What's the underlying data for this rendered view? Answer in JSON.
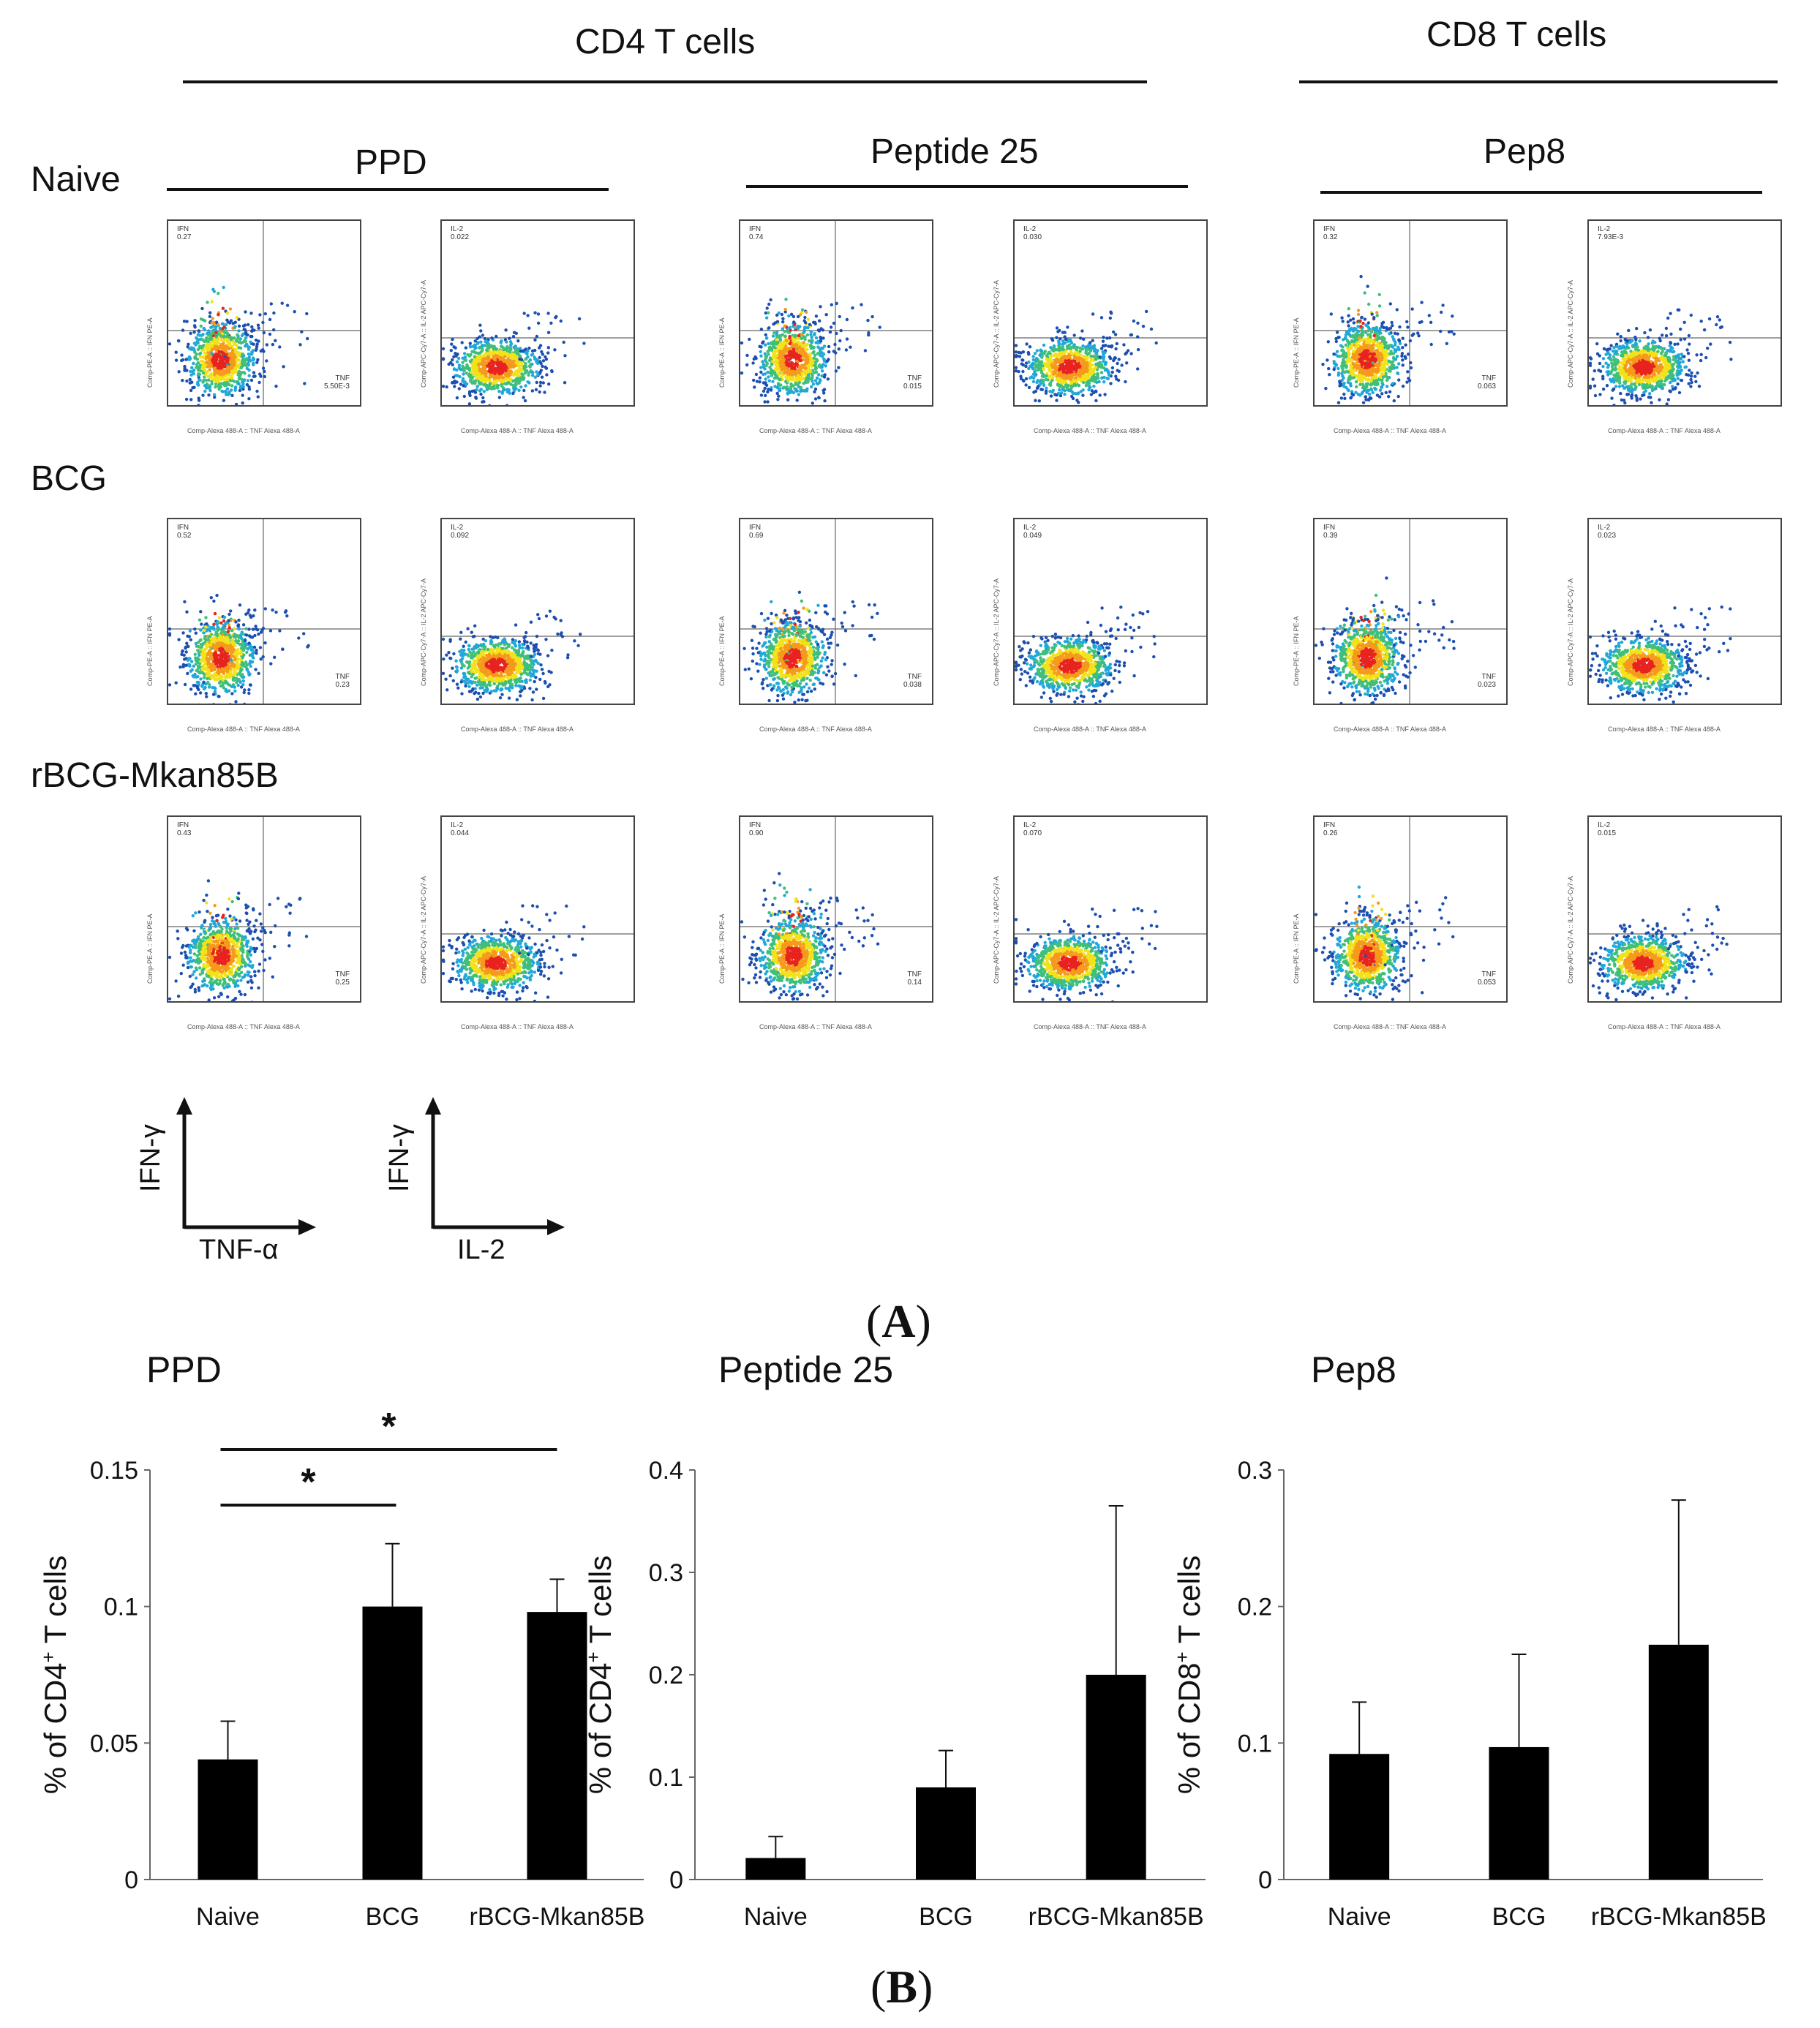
{
  "panel_a": {
    "letter": "A",
    "group_headers": {
      "cd4": "CD4 T cells",
      "cd8": "CD8 T cells"
    },
    "stim_headers": {
      "ppd": "PPD",
      "peptide25": "Peptide 25",
      "pep8": "Pep8"
    },
    "row_labels": [
      "Naive",
      "BCG",
      "rBCG-Mkan85B"
    ],
    "x_axis_text": {
      "tnf": "Comp-Alexa 488-A :: TNF Alexa 488-A",
      "il2": "Comp-Alexa 488-A :: TNF Alexa 488-A"
    },
    "y_axis_text": {
      "tnf": "Comp-PE-A :: IFN PE-A",
      "il2": "Comp-APC-Cy7-A :: IL-2 APC-Cy7-A"
    },
    "gates": {
      "naive": [
        {
          "ul": "IFN",
          "ul_val": "0.27",
          "lr": "TNF",
          "lr_val": "5.50E-3"
        },
        {
          "ul": "IL-2",
          "ul_val": "0.022",
          "lr": "",
          "lr_val": ""
        },
        {
          "ul": "IFN",
          "ul_val": "0.74",
          "lr": "TNF",
          "lr_val": "0.015"
        },
        {
          "ul": "IL-2",
          "ul_val": "0.030",
          "lr": "",
          "lr_val": ""
        },
        {
          "ul": "IFN",
          "ul_val": "0.32",
          "lr": "TNF",
          "lr_val": "0.063"
        },
        {
          "ul": "IL-2",
          "ul_val": "7.93E-3",
          "lr": "",
          "lr_val": ""
        }
      ],
      "bcg": [
        {
          "ul": "IFN",
          "ul_val": "0.52",
          "lr": "TNF",
          "lr_val": "0.23"
        },
        {
          "ul": "IL-2",
          "ul_val": "0.092",
          "lr": "",
          "lr_val": ""
        },
        {
          "ul": "IFN",
          "ul_val": "0.69",
          "lr": "TNF",
          "lr_val": "0.038"
        },
        {
          "ul": "IL-2",
          "ul_val": "0.049",
          "lr": "",
          "lr_val": ""
        },
        {
          "ul": "IFN",
          "ul_val": "0.39",
          "lr": "TNF",
          "lr_val": "0.023"
        },
        {
          "ul": "IL-2",
          "ul_val": "0.023",
          "lr": "",
          "lr_val": ""
        }
      ],
      "rbcg": [
        {
          "ul": "IFN",
          "ul_val": "0.43",
          "lr": "TNF",
          "lr_val": "0.25"
        },
        {
          "ul": "IL-2",
          "ul_val": "0.044",
          "lr": "",
          "lr_val": ""
        },
        {
          "ul": "IFN",
          "ul_val": "0.90",
          "lr": "TNF",
          "lr_val": "0.14"
        },
        {
          "ul": "IL-2",
          "ul_val": "0.070",
          "lr": "",
          "lr_val": ""
        },
        {
          "ul": "IFN",
          "ul_val": "0.26",
          "lr": "TNF",
          "lr_val": "0.053"
        },
        {
          "ul": "IL-2",
          "ul_val": "0.015",
          "lr": "",
          "lr_val": ""
        }
      ]
    },
    "legend": {
      "y1": "IFN-γ",
      "x1": "TNF-α",
      "y2": "IFN-γ",
      "x2": "IL-2"
    }
  },
  "panel_b_letter": "B",
  "colors": {
    "bar": "#000000",
    "text": "#111111",
    "density_hi": "#e8231f",
    "density_mid": "#f2e21b",
    "density_lo": "#1c4fb0"
  },
  "chart_data": [
    {
      "type": "bar",
      "title": "PPD",
      "ylabel": "% of CD4+ T cells",
      "ylabel_main": "% of CD4",
      "ylabel_sup": "+",
      "ylabel_tail": " T cells",
      "categories": [
        "Naive",
        "BCG",
        "rBCG-Mkan85B"
      ],
      "values": [
        0.044,
        0.1,
        0.098
      ],
      "errors": [
        0.014,
        0.023,
        0.012
      ],
      "ylim": [
        0,
        0.15
      ],
      "yticks": [
        0,
        0.05,
        0.1,
        0.15
      ],
      "ytick_labels": [
        "0",
        "0.05",
        "0.1",
        "0.15"
      ],
      "significance": [
        {
          "from": 0,
          "to": 1,
          "label": "*"
        },
        {
          "from": 0,
          "to": 2,
          "label": "*"
        }
      ]
    },
    {
      "type": "bar",
      "title": "Peptide 25",
      "ylabel": "% of CD4+ T cells",
      "ylabel_main": "% of CD4",
      "ylabel_sup": "+",
      "ylabel_tail": " T cells",
      "categories": [
        "Naive",
        "BCG",
        "rBCG-Mkan85B"
      ],
      "values": [
        0.021,
        0.09,
        0.2
      ],
      "errors": [
        0.021,
        0.036,
        0.165
      ],
      "ylim": [
        0,
        0.4
      ],
      "yticks": [
        0,
        0.1,
        0.2,
        0.3,
        0.4
      ],
      "ytick_labels": [
        "0",
        "0.1",
        "0.2",
        "0.3",
        "0.4"
      ],
      "significance": []
    },
    {
      "type": "bar",
      "title": "Pep8",
      "ylabel": "% of CD8+ T cells",
      "ylabel_main": "% of CD8",
      "ylabel_sup": "+",
      "ylabel_tail": " T cells",
      "categories": [
        "Naive",
        "BCG",
        "rBCG-Mkan85B"
      ],
      "values": [
        0.092,
        0.097,
        0.172
      ],
      "errors": [
        0.038,
        0.068,
        0.106
      ],
      "ylim": [
        0,
        0.3
      ],
      "yticks": [
        0,
        0.1,
        0.2,
        0.3
      ],
      "ytick_labels": [
        "0",
        "0.1",
        "0.2",
        "0.3"
      ],
      "significance": []
    }
  ]
}
